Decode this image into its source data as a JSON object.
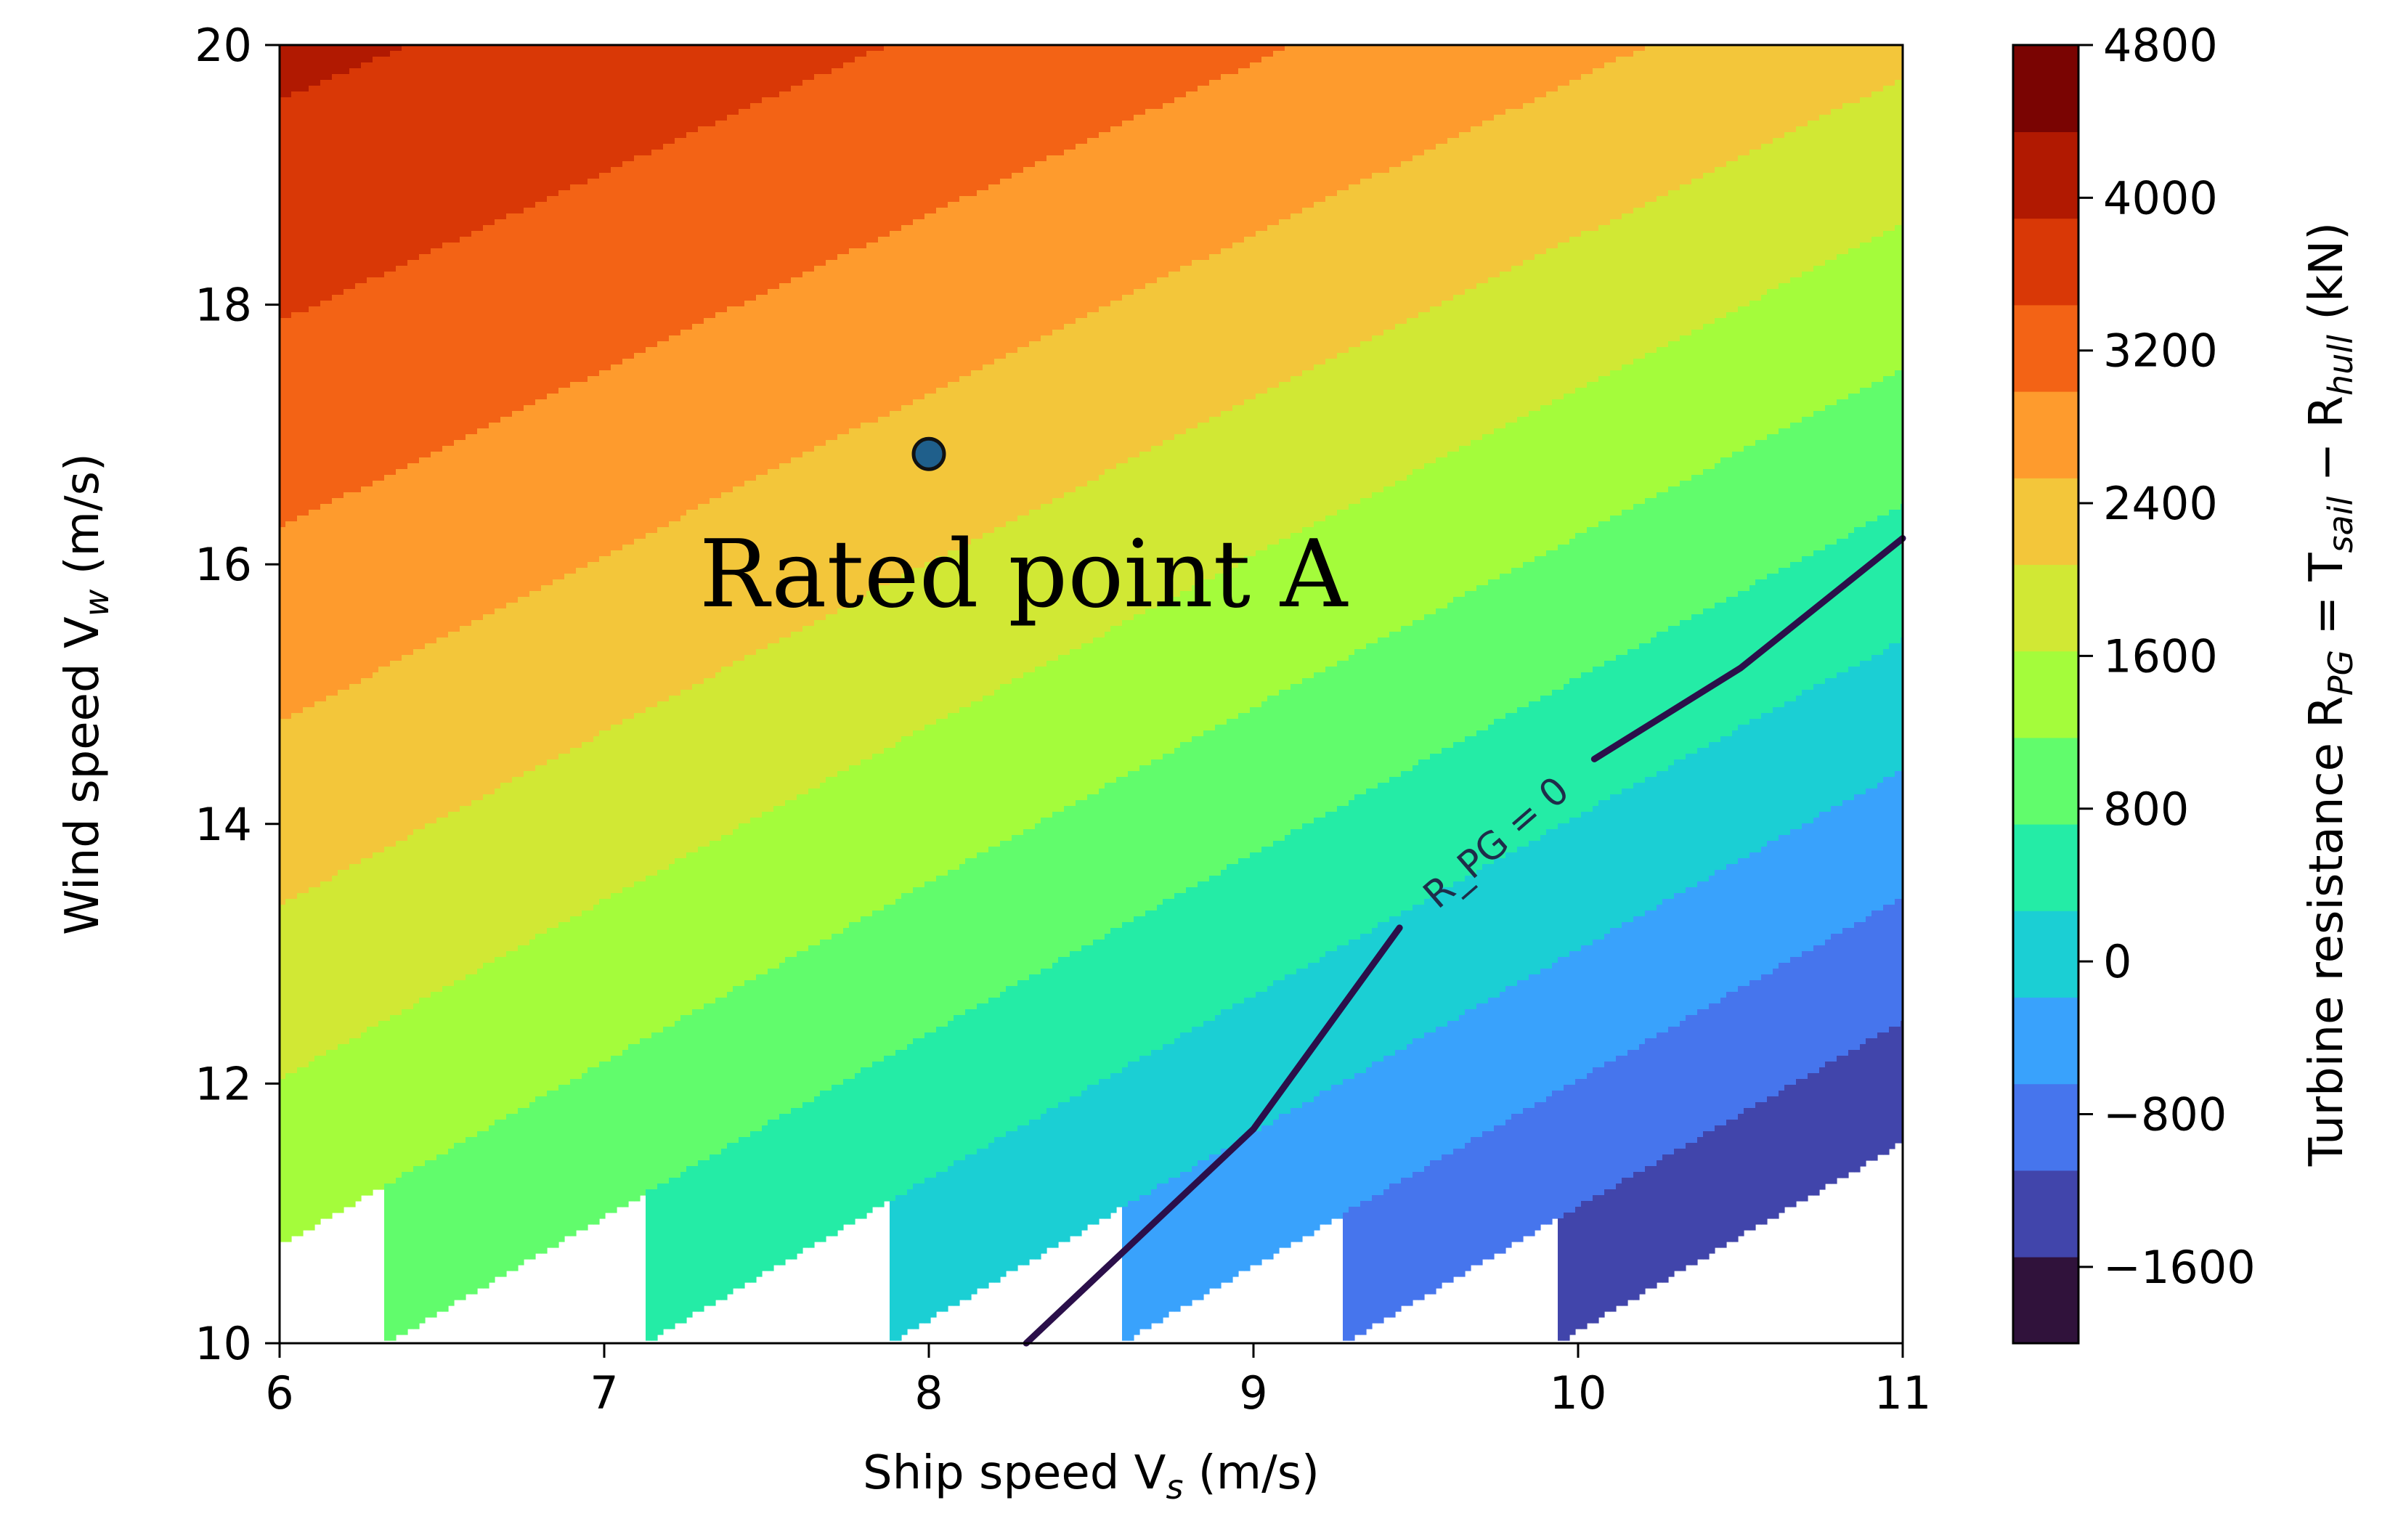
{
  "chart_data": {
    "type": "contourf",
    "xlabel": "Ship speed V_s (m/s)",
    "xlabel_parts": {
      "main": "Ship speed V",
      "sub": "s",
      "unit": " (m/s)"
    },
    "ylabel": "Wind speed V_w (m/s)",
    "ylabel_parts": {
      "main": "Wind speed V",
      "sub": "w",
      "unit": " (m/s)"
    },
    "xlim": [
      6,
      11
    ],
    "ylim": [
      10,
      20
    ],
    "xticks": [
      "6",
      "7",
      "8",
      "9",
      "10",
      "11"
    ],
    "yticks": [
      "10",
      "12",
      "14",
      "16",
      "18",
      "20"
    ],
    "colorbar": {
      "label": "Turbine resistance R_PG = T_sail − R_hull (kN)",
      "label_parts": {
        "pre": "Turbine resistance R",
        "sub1": "PG",
        "mid": " = T",
        "sub2": "sail",
        "mid2": " − R",
        "sub3": "hull",
        "unit": " (kN)"
      },
      "levels": [
        -2000,
        -1600,
        -1200,
        -800,
        -400,
        0,
        400,
        800,
        1200,
        1600,
        2000,
        2400,
        2800,
        3200,
        3600,
        4000,
        4400,
        4800
      ],
      "ticks": [
        "4800",
        "4000",
        "3200",
        "2400",
        "1600",
        "800",
        "0",
        "−800",
        "−1600"
      ],
      "tick_values": [
        4800,
        4000,
        3200,
        2400,
        1600,
        800,
        0,
        -800,
        -1600
      ],
      "colors": [
        "#30123b",
        "#4145ab",
        "#4675ed",
        "#39a2fc",
        "#1bcfd4",
        "#24eca6",
        "#61fc6c",
        "#a4fc3b",
        "#d1e834",
        "#f3c63a",
        "#fe9b2d",
        "#f36315",
        "#d93806",
        "#b11901",
        "#7a0402"
      ]
    },
    "field_model": {
      "description_of_data": "R_PG approx values read from contour colors",
      "sample_points": [
        {
          "x": 6,
          "y": 20,
          "value": 4600
        },
        {
          "x": 6,
          "y": 10,
          "value": 900
        },
        {
          "x": 8,
          "y": 16.85,
          "value": 2500
        },
        {
          "x": 11,
          "y": 10,
          "value": -1800
        },
        {
          "x": 11,
          "y": 20,
          "value": 1600
        }
      ]
    },
    "zero_contour": {
      "label": "R_PG = 0",
      "points": [
        [
          8.3,
          10
        ],
        [
          9.0,
          11.65
        ],
        [
          9.45,
          13.2
        ],
        [
          9.7,
          13.6
        ],
        [
          9.8,
          13.8
        ],
        [
          10.05,
          14.5
        ],
        [
          10.5,
          15.2
        ],
        [
          11,
          16.2
        ]
      ]
    },
    "annotations": [
      {
        "text": "Rated point A",
        "x": 8.0,
        "y": 16.85
      }
    ]
  }
}
